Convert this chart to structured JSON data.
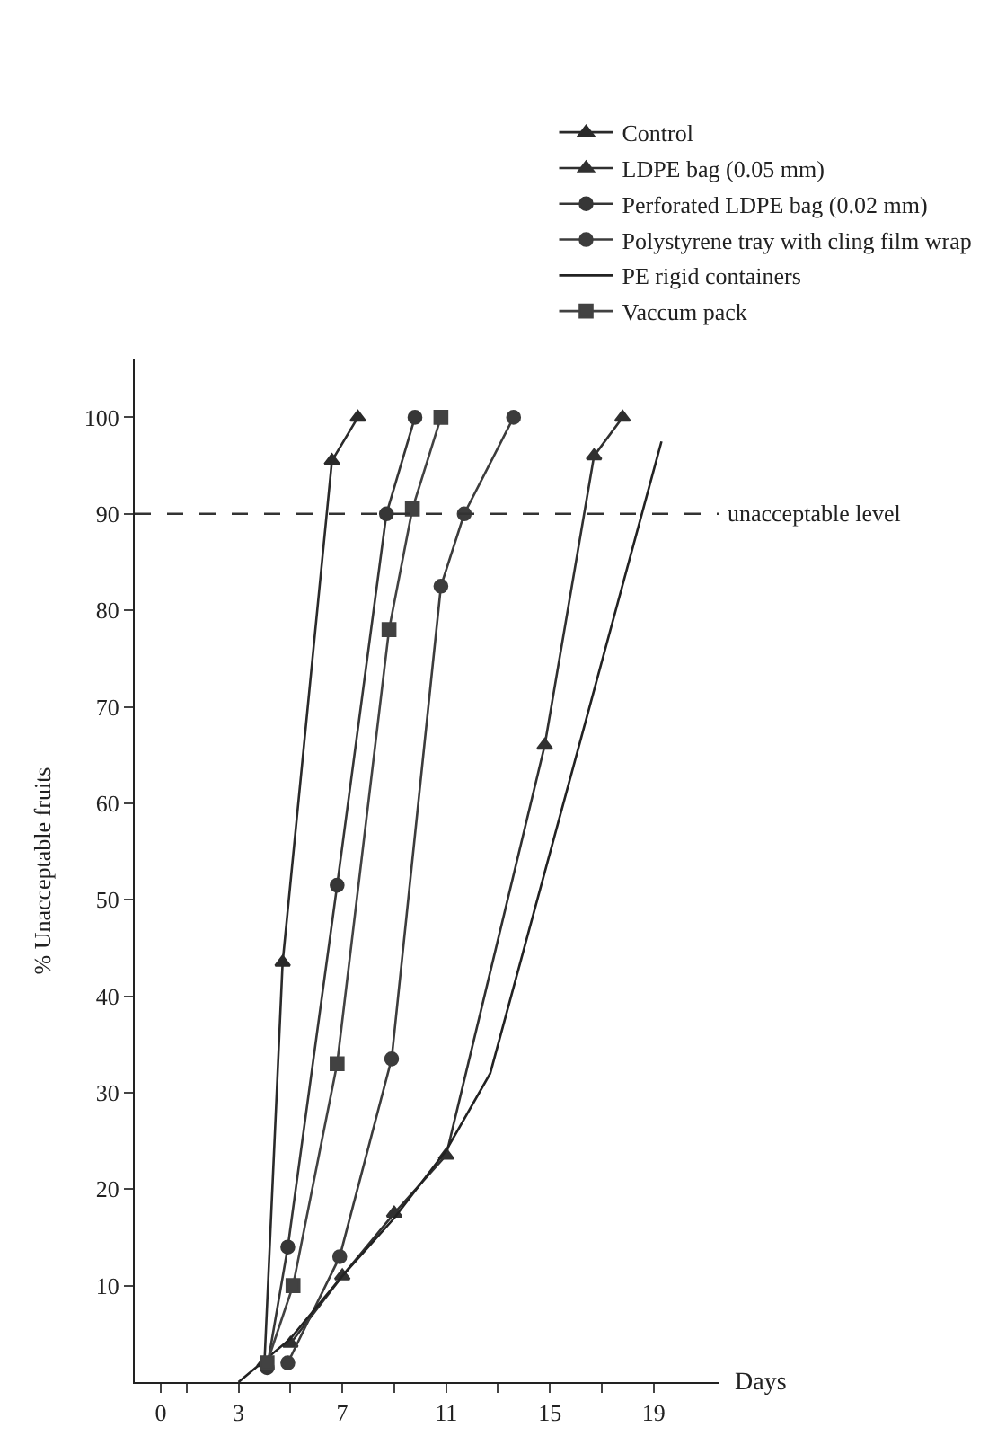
{
  "chart_data": {
    "type": "line",
    "xlabel": "Days",
    "ylabel": "% Unacceptable fruits",
    "xlim": [
      -1,
      21.5
    ],
    "ylim": [
      0,
      106
    ],
    "xticks": [
      0,
      {
        "value": 1,
        "label": null
      },
      3,
      {
        "value": 5,
        "label": null
      },
      7,
      {
        "value": 9,
        "label": null
      },
      11,
      {
        "value": 13,
        "label": null
      },
      15,
      {
        "value": 17,
        "label": null
      },
      19
    ],
    "yticks": [
      10,
      20,
      30,
      40,
      50,
      60,
      70,
      80,
      90,
      100
    ],
    "legend": "top right",
    "line_style": "solid",
    "series": [
      {
        "name": "Control",
        "color": "#2a2a2a",
        "marker": "triangle",
        "x": [
          4.0,
          4.7,
          6.6,
          7.6
        ],
        "values": [
          2,
          43.5,
          95.5,
          100
        ]
      },
      {
        "name": "LDPE bag (0.05 mm)",
        "color": "#303030",
        "marker": "triangle",
        "x": [
          5.0,
          7.0,
          9.0,
          11.0,
          14.8,
          16.7,
          17.8
        ],
        "values": [
          4,
          11,
          17.5,
          23.5,
          66,
          96,
          100
        ]
      },
      {
        "name": "Perforated LDPE bag (0.02 mm)",
        "color": "#363636",
        "marker": "circle",
        "x": [
          4.1,
          4.9,
          6.8,
          8.7,
          9.8
        ],
        "values": [
          1.5,
          14,
          51.5,
          90,
          100
        ]
      },
      {
        "name": "Polystyrene tray with cling film wrap",
        "color": "#3c3c3c",
        "marker": "circle",
        "x": [
          4.9,
          6.9,
          8.9,
          10.8,
          11.7,
          13.6
        ],
        "values": [
          2,
          13,
          33.5,
          82.5,
          90,
          100
        ]
      },
      {
        "name": "PE rigid containers",
        "color": "#222222",
        "marker": "none",
        "x": [
          3,
          5.0,
          7.0,
          9.0,
          11.0,
          12.7,
          19.3
        ],
        "values": [
          0,
          4.5,
          11,
          17,
          24,
          32,
          97.5
        ]
      },
      {
        "name": "Vaccum pack",
        "color": "#424242",
        "marker": "square",
        "x": [
          4.1,
          5.1,
          6.8,
          8.8,
          9.7,
          10.8
        ],
        "values": [
          2,
          10,
          33,
          78,
          90.5,
          100
        ]
      }
    ],
    "ref_lines": [
      {
        "axis": "y",
        "value": 90,
        "label": "unacceptable level",
        "line_style": "dashed",
        "color": "#333333"
      }
    ]
  }
}
